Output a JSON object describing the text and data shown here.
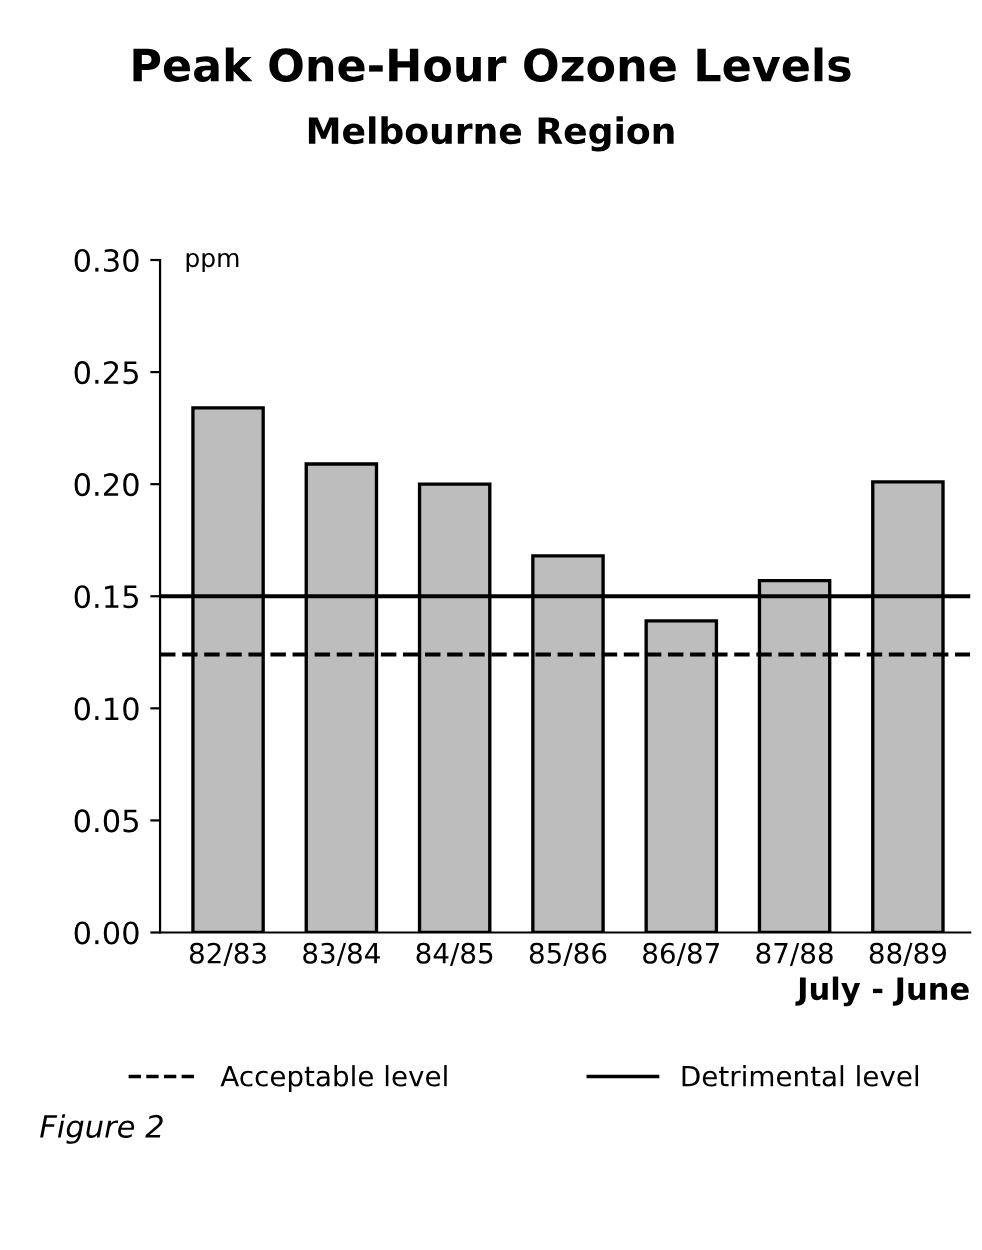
{
  "chart_data": {
    "type": "bar",
    "title": "Peak One-Hour Ozone Levels",
    "subtitle": "Melbourne Region",
    "ylabel": "ppm",
    "xlabel": "July - June",
    "categories": [
      "82/83",
      "83/84",
      "84/85",
      "85/86",
      "86/87",
      "87/88",
      "88/89"
    ],
    "values": [
      0.234,
      0.209,
      0.2,
      0.168,
      0.139,
      0.157,
      0.201
    ],
    "color": "#bdbdbd",
    "ylim": [
      0,
      0.3
    ],
    "yticks": [
      {
        "value": 0,
        "label": "0.00"
      },
      {
        "value": 0.05,
        "label": "0.05"
      },
      {
        "value": 0.1,
        "label": "0.10"
      },
      {
        "value": 0.15,
        "label": "0.15"
      },
      {
        "value": 0.2,
        "label": "0.20"
      },
      {
        "value": 0.25,
        "label": "0.25"
      },
      {
        "value": 0.3,
        "label": "0.30"
      }
    ],
    "ref_lines": [
      {
        "axis": "y",
        "value": 0.124,
        "label": "Acceptable level",
        "line_style": "dashed",
        "color": "#000000"
      },
      {
        "axis": "y",
        "value": 0.15,
        "label": "Detrimental level",
        "line_style": "solid",
        "color": "#000000"
      }
    ],
    "legend": "bottom",
    "grid": false,
    "annotations": [
      "Figure 2"
    ]
  }
}
